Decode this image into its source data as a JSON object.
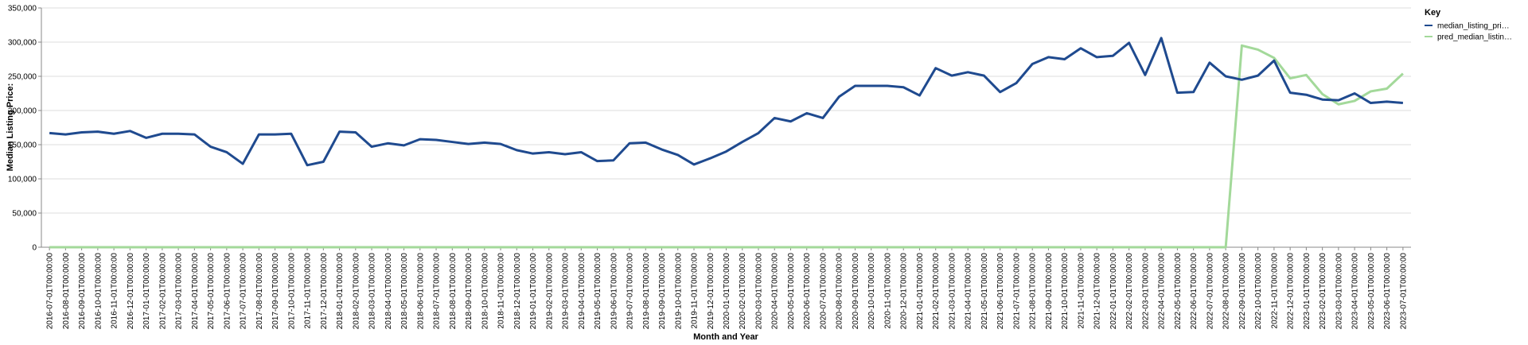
{
  "chart_data": {
    "type": "line",
    "y_label": "Median Listing Price:",
    "x_label": "Month and Year",
    "legend_title": "Key",
    "legend": "top-right",
    "grid": true,
    "categories": [
      "2016-07-01T00:00:00",
      "2016-08-01T00:00:00",
      "2016-09-01T00:00:00",
      "2016-10-01T00:00:00",
      "2016-11-01T00:00:00",
      "2016-12-01T00:00:00",
      "2017-01-01T00:00:00",
      "2017-02-01T00:00:00",
      "2017-03-01T00:00:00",
      "2017-04-01T00:00:00",
      "2017-05-01T00:00:00",
      "2017-06-01T00:00:00",
      "2017-07-01T00:00:00",
      "2017-08-01T00:00:00",
      "2017-09-01T00:00:00",
      "2017-10-01T00:00:00",
      "2017-11-01T00:00:00",
      "2017-12-01T00:00:00",
      "2018-01-01T00:00:00",
      "2018-02-01T00:00:00",
      "2018-03-01T00:00:00",
      "2018-04-01T00:00:00",
      "2018-05-01T00:00:00",
      "2018-06-01T00:00:00",
      "2018-07-01T00:00:00",
      "2018-08-01T00:00:00",
      "2018-09-01T00:00:00",
      "2018-10-01T00:00:00",
      "2018-11-01T00:00:00",
      "2018-12-01T00:00:00",
      "2019-01-01T00:00:00",
      "2019-02-01T00:00:00",
      "2019-03-01T00:00:00",
      "2019-04-01T00:00:00",
      "2019-05-01T00:00:00",
      "2019-06-01T00:00:00",
      "2019-07-01T00:00:00",
      "2019-08-01T00:00:00",
      "2019-09-01T00:00:00",
      "2019-10-01T00:00:00",
      "2019-11-01T00:00:00",
      "2019-12-01T00:00:00",
      "2020-01-01T00:00:00",
      "2020-02-01T00:00:00",
      "2020-03-01T00:00:00",
      "2020-04-01T00:00:00",
      "2020-05-01T00:00:00",
      "2020-06-01T00:00:00",
      "2020-07-01T00:00:00",
      "2020-08-01T00:00:00",
      "2020-09-01T00:00:00",
      "2020-10-01T00:00:00",
      "2020-11-01T00:00:00",
      "2020-12-01T00:00:00",
      "2021-01-01T00:00:00",
      "2021-02-01T00:00:00",
      "2021-03-01T00:00:00",
      "2021-04-01T00:00:00",
      "2021-05-01T00:00:00",
      "2021-06-01T00:00:00",
      "2021-07-01T00:00:00",
      "2021-08-01T00:00:00",
      "2021-09-01T00:00:00",
      "2021-10-01T00:00:00",
      "2021-11-01T00:00:00",
      "2021-12-01T00:00:00",
      "2022-01-01T00:00:00",
      "2022-02-01T00:00:00",
      "2022-03-01T00:00:00",
      "2022-04-01T00:00:00",
      "2022-05-01T00:00:00",
      "2022-06-01T00:00:00",
      "2022-07-01T00:00:00",
      "2022-08-01T00:00:00",
      "2022-09-01T00:00:00",
      "2022-10-01T00:00:00",
      "2022-11-01T00:00:00",
      "2022-12-01T00:00:00",
      "2023-01-01T00:00:00",
      "2023-02-01T00:00:00",
      "2023-03-01T00:00:00",
      "2023-04-01T00:00:00",
      "2023-05-01T00:00:00",
      "2023-06-01T00:00:00",
      "2023-07-01T00:00:00"
    ],
    "series": [
      {
        "name": "median_listing_pri…",
        "color": "#1f4a8f",
        "values": [
          167000,
          165000,
          168000,
          169000,
          166000,
          170000,
          160000,
          166000,
          166000,
          165000,
          147000,
          139000,
          122000,
          165000,
          165000,
          166000,
          120000,
          125000,
          169000,
          168000,
          147000,
          152000,
          149000,
          158000,
          157000,
          154000,
          151000,
          153000,
          151000,
          142000,
          137000,
          139000,
          136000,
          139000,
          126000,
          127000,
          152000,
          153000,
          143000,
          135000,
          121000,
          130000,
          140000,
          154000,
          167000,
          189000,
          184000,
          196000,
          189000,
          220000,
          236000,
          236000,
          236000,
          234000,
          222000,
          262000,
          251000,
          256000,
          251000,
          227000,
          240000,
          268000,
          278000,
          275000,
          291000,
          278000,
          280000,
          299000,
          252000,
          306000,
          226000,
          227000,
          270000,
          250000,
          245000,
          251000,
          273000,
          226000,
          223000,
          216000,
          215000,
          225000,
          211000,
          213000,
          211000
        ]
      },
      {
        "name": "pred_median_listin…",
        "color": "#a3d99a",
        "values": [
          0,
          0,
          0,
          0,
          0,
          0,
          0,
          0,
          0,
          0,
          0,
          0,
          0,
          0,
          0,
          0,
          0,
          0,
          0,
          0,
          0,
          0,
          0,
          0,
          0,
          0,
          0,
          0,
          0,
          0,
          0,
          0,
          0,
          0,
          0,
          0,
          0,
          0,
          0,
          0,
          0,
          0,
          0,
          0,
          0,
          0,
          0,
          0,
          0,
          0,
          0,
          0,
          0,
          0,
          0,
          0,
          0,
          0,
          0,
          0,
          0,
          0,
          0,
          0,
          0,
          0,
          0,
          0,
          0,
          0,
          0,
          0,
          0,
          0,
          295000,
          289000,
          277000,
          247000,
          252000,
          224000,
          209000,
          214000,
          228000,
          232000,
          254000
        ]
      }
    ],
    "ylim": [
      0,
      350000
    ],
    "yticks": [
      0,
      {
        "value": 50000,
        "label": "50,000"
      },
      {
        "value": 100000,
        "label": "100,000"
      },
      {
        "value": 150000,
        "label": "150,000"
      },
      {
        "value": 200000,
        "label": "200,000"
      },
      {
        "value": 250000,
        "label": "250,000"
      },
      {
        "value": 300000,
        "label": "300,000"
      },
      {
        "value": 350000,
        "label": "350,000"
      }
    ]
  }
}
